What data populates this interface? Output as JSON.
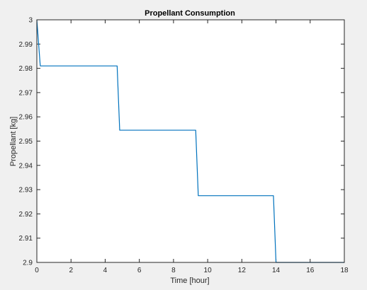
{
  "colors": {
    "figure_background": "#f0f0f0",
    "axes_background": "#ffffff",
    "axes_line": "#262626",
    "series": "#0072bd"
  },
  "chart_data": {
    "type": "line",
    "title": "Propellant Consumption",
    "xlabel": "Time [hour]",
    "ylabel": "Propellant [kg]",
    "xlim": [
      0,
      18
    ],
    "ylim": [
      2.9,
      3.0
    ],
    "xticks": [
      0,
      2,
      4,
      6,
      8,
      10,
      12,
      14,
      16,
      18
    ],
    "yticks": [
      2.9,
      2.91,
      2.92,
      2.93,
      2.94,
      2.95,
      2.96,
      2.97,
      2.98,
      2.99,
      3
    ],
    "xtick_labels": [
      "0",
      "2",
      "4",
      "6",
      "8",
      "10",
      "12",
      "14",
      "16",
      "18"
    ],
    "ytick_labels": [
      "2.9",
      "2.91",
      "2.92",
      "2.93",
      "2.94",
      "2.95",
      "2.96",
      "2.97",
      "2.98",
      "2.99",
      "3"
    ],
    "grid": false,
    "legend": "none",
    "series": [
      {
        "x": [
          0,
          0.2,
          4.7,
          4.85,
          9.3,
          9.45,
          13.85,
          14.0,
          18
        ],
        "y": [
          3.0,
          2.981,
          2.981,
          2.9545,
          2.9545,
          2.9275,
          2.9275,
          2.9,
          2.9
        ]
      }
    ]
  }
}
